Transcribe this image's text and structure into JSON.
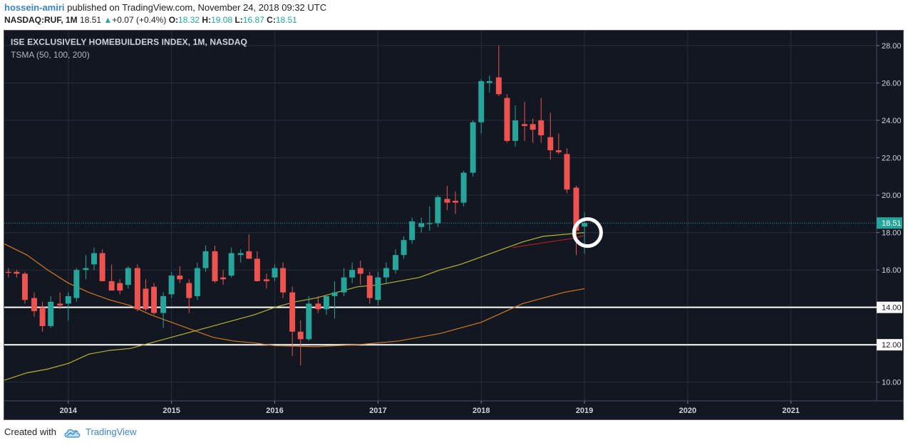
{
  "header": {
    "author": "hossein-amiri",
    "published_text": " published on TradingView.com, November 24, 2018 09:32 UTC",
    "symbol": "NASDAQ:RUF, 1M",
    "last": "18.51",
    "change_arrow": "▲",
    "change": "+0.07 (+0.4%)",
    "o_label": "O:",
    "o_value": "18.32",
    "h_label": "H:",
    "h_value": "19.08",
    "l_label": "L:",
    "l_value": "16.87",
    "c_label": "C:",
    "c_value": "18.51"
  },
  "chart_title": "ISE EXCLUSIVELY HOMEBUILDERS INDEX, 1M, NASDAQ",
  "indicator_label": "TSMA (50, 100, 200)",
  "footer": {
    "created_with": "Created with",
    "brand": "TradingView"
  },
  "colors": {
    "background": "#131722",
    "up": "#26a69a",
    "down": "#ef5350",
    "sma50": "#b5b530",
    "sma100": "#d07a20",
    "sma200": "#b01e1e",
    "last_price_line": "#26a69a",
    "horizontal_levels": "#ffffff",
    "annotation_circle": "#ffffff"
  },
  "chart_data": {
    "type": "candlestick",
    "title": "ISE EXCLUSIVELY HOMEBUILDERS INDEX, 1M, NASDAQ",
    "interval": "1M",
    "ylim": [
      9,
      28.8
    ],
    "y_ticks": [
      "10.00",
      "12.00",
      "14.00",
      "16.00",
      "18.00",
      "20.00",
      "22.00",
      "24.00",
      "26.00",
      "28.00"
    ],
    "x_ticks": [
      {
        "label": "2014",
        "t": 2014
      },
      {
        "label": "2015",
        "t": 2015
      },
      {
        "label": "2016",
        "t": 2016
      },
      {
        "label": "2017",
        "t": 2017
      },
      {
        "label": "2018",
        "t": 2018
      },
      {
        "label": "2019",
        "t": 2019
      },
      {
        "label": "2020",
        "t": 2020
      },
      {
        "label": "2021",
        "t": 2021
      }
    ],
    "x_range": [
      2013.38,
      2021.83
    ],
    "candles": [
      {
        "t": 2013.42,
        "o": 15.9,
        "h": 16.1,
        "l": 15.6,
        "c": 15.85
      },
      {
        "t": 2013.5,
        "o": 15.9,
        "h": 16.0,
        "l": 15.6,
        "c": 15.8
      },
      {
        "t": 2013.58,
        "o": 15.8,
        "h": 15.9,
        "l": 14.2,
        "c": 14.4
      },
      {
        "t": 2013.67,
        "o": 14.5,
        "h": 14.8,
        "l": 13.5,
        "c": 13.8
      },
      {
        "t": 2013.75,
        "o": 14.0,
        "h": 14.3,
        "l": 12.7,
        "c": 13.0
      },
      {
        "t": 2013.83,
        "o": 13.0,
        "h": 14.6,
        "l": 12.9,
        "c": 14.3
      },
      {
        "t": 2013.92,
        "o": 14.2,
        "h": 14.8,
        "l": 13.9,
        "c": 14.1
      },
      {
        "t": 2014.0,
        "o": 14.2,
        "h": 14.8,
        "l": 13.3,
        "c": 14.6
      },
      {
        "t": 2014.08,
        "o": 14.5,
        "h": 16.1,
        "l": 14.3,
        "c": 16.0
      },
      {
        "t": 2014.17,
        "o": 16.0,
        "h": 16.8,
        "l": 15.5,
        "c": 16.1
      },
      {
        "t": 2014.25,
        "o": 16.3,
        "h": 17.2,
        "l": 16.0,
        "c": 16.9
      },
      {
        "t": 2014.33,
        "o": 16.9,
        "h": 17.1,
        "l": 15.5,
        "c": 15.4
      },
      {
        "t": 2014.42,
        "o": 15.4,
        "h": 16.3,
        "l": 14.9,
        "c": 14.9
      },
      {
        "t": 2014.5,
        "o": 15.3,
        "h": 15.5,
        "l": 14.7,
        "c": 14.9
      },
      {
        "t": 2014.58,
        "o": 15.2,
        "h": 16.2,
        "l": 15.0,
        "c": 16.1
      },
      {
        "t": 2014.67,
        "o": 16.1,
        "h": 16.3,
        "l": 13.8,
        "c": 13.9
      },
      {
        "t": 2014.75,
        "o": 15.0,
        "h": 15.5,
        "l": 13.8,
        "c": 13.9
      },
      {
        "t": 2014.83,
        "o": 15.1,
        "h": 15.3,
        "l": 13.6,
        "c": 13.7
      },
      {
        "t": 2014.92,
        "o": 13.7,
        "h": 14.8,
        "l": 12.9,
        "c": 14.6
      },
      {
        "t": 2015.0,
        "o": 14.7,
        "h": 15.9,
        "l": 14.5,
        "c": 15.7
      },
      {
        "t": 2015.08,
        "o": 15.7,
        "h": 16.2,
        "l": 15.3,
        "c": 15.5
      },
      {
        "t": 2015.17,
        "o": 15.3,
        "h": 15.5,
        "l": 13.7,
        "c": 14.5
      },
      {
        "t": 2015.25,
        "o": 14.6,
        "h": 16.4,
        "l": 14.4,
        "c": 16.1
      },
      {
        "t": 2015.33,
        "o": 16.1,
        "h": 17.3,
        "l": 15.9,
        "c": 17.0
      },
      {
        "t": 2015.42,
        "o": 17.0,
        "h": 17.3,
        "l": 15.3,
        "c": 15.4
      },
      {
        "t": 2015.5,
        "o": 15.6,
        "h": 16.0,
        "l": 15.2,
        "c": 15.5
      },
      {
        "t": 2015.58,
        "o": 15.7,
        "h": 17.2,
        "l": 15.6,
        "c": 16.9
      },
      {
        "t": 2015.67,
        "o": 16.8,
        "h": 17.1,
        "l": 16.4,
        "c": 16.9
      },
      {
        "t": 2015.75,
        "o": 17.0,
        "h": 17.9,
        "l": 16.6,
        "c": 16.6
      },
      {
        "t": 2015.83,
        "o": 16.6,
        "h": 17.0,
        "l": 15.4,
        "c": 15.4
      },
      {
        "t": 2015.92,
        "o": 15.5,
        "h": 15.8,
        "l": 15.0,
        "c": 15.4
      },
      {
        "t": 2016.0,
        "o": 15.6,
        "h": 16.3,
        "l": 15.4,
        "c": 16.1
      },
      {
        "t": 2016.08,
        "o": 16.1,
        "h": 16.4,
        "l": 14.5,
        "c": 14.8
      },
      {
        "t": 2016.17,
        "o": 14.8,
        "h": 15.1,
        "l": 11.4,
        "c": 12.7
      },
      {
        "t": 2016.25,
        "o": 12.7,
        "h": 13.3,
        "l": 10.9,
        "c": 12.3
      },
      {
        "t": 2016.33,
        "o": 12.3,
        "h": 14.6,
        "l": 12.2,
        "c": 14.2
      },
      {
        "t": 2016.42,
        "o": 14.2,
        "h": 14.6,
        "l": 13.7,
        "c": 13.9
      },
      {
        "t": 2016.5,
        "o": 13.9,
        "h": 14.6,
        "l": 13.6,
        "c": 14.6
      },
      {
        "t": 2016.58,
        "o": 14.6,
        "h": 15.4,
        "l": 13.4,
        "c": 14.8
      },
      {
        "t": 2016.67,
        "o": 14.8,
        "h": 16.1,
        "l": 14.6,
        "c": 15.6
      },
      {
        "t": 2016.75,
        "o": 15.6,
        "h": 16.4,
        "l": 15.3,
        "c": 16.0
      },
      {
        "t": 2016.83,
        "o": 16.1,
        "h": 16.5,
        "l": 15.2,
        "c": 15.8
      },
      {
        "t": 2016.92,
        "o": 15.7,
        "h": 15.9,
        "l": 14.2,
        "c": 14.5
      },
      {
        "t": 2017.0,
        "o": 14.4,
        "h": 15.9,
        "l": 14.1,
        "c": 15.6
      },
      {
        "t": 2017.08,
        "o": 15.6,
        "h": 16.4,
        "l": 15.3,
        "c": 16.1
      },
      {
        "t": 2017.17,
        "o": 16.0,
        "h": 17.1,
        "l": 15.8,
        "c": 16.8
      },
      {
        "t": 2017.25,
        "o": 16.8,
        "h": 17.8,
        "l": 16.6,
        "c": 17.6
      },
      {
        "t": 2017.33,
        "o": 17.6,
        "h": 18.8,
        "l": 17.4,
        "c": 18.6
      },
      {
        "t": 2017.42,
        "o": 18.3,
        "h": 18.8,
        "l": 18.0,
        "c": 18.5
      },
      {
        "t": 2017.5,
        "o": 18.5,
        "h": 19.4,
        "l": 18.1,
        "c": 18.5
      },
      {
        "t": 2017.58,
        "o": 18.5,
        "h": 20.0,
        "l": 18.3,
        "c": 19.9
      },
      {
        "t": 2017.67,
        "o": 19.8,
        "h": 20.5,
        "l": 19.2,
        "c": 19.6
      },
      {
        "t": 2017.75,
        "o": 19.7,
        "h": 20.2,
        "l": 19.0,
        "c": 19.6
      },
      {
        "t": 2017.83,
        "o": 19.6,
        "h": 21.3,
        "l": 19.4,
        "c": 21.2
      },
      {
        "t": 2017.92,
        "o": 21.2,
        "h": 24.0,
        "l": 21.0,
        "c": 23.9
      },
      {
        "t": 2018.0,
        "o": 23.9,
        "h": 26.2,
        "l": 23.3,
        "c": 26.1
      },
      {
        "t": 2018.08,
        "o": 26.0,
        "h": 26.4,
        "l": 25.5,
        "c": 26.1
      },
      {
        "t": 2018.17,
        "o": 26.3,
        "h": 28.0,
        "l": 25.3,
        "c": 25.4
      },
      {
        "t": 2018.25,
        "o": 25.2,
        "h": 25.4,
        "l": 22.8,
        "c": 22.9
      },
      {
        "t": 2018.33,
        "o": 22.9,
        "h": 24.8,
        "l": 22.6,
        "c": 24.0
      },
      {
        "t": 2018.42,
        "o": 23.8,
        "h": 25.0,
        "l": 22.9,
        "c": 23.7
      },
      {
        "t": 2018.5,
        "o": 23.8,
        "h": 24.1,
        "l": 22.8,
        "c": 23.5
      },
      {
        "t": 2018.58,
        "o": 24.0,
        "h": 25.2,
        "l": 22.8,
        "c": 23.2
      },
      {
        "t": 2018.67,
        "o": 23.1,
        "h": 24.4,
        "l": 21.9,
        "c": 22.4
      },
      {
        "t": 2018.75,
        "o": 22.4,
        "h": 23.3,
        "l": 22.2,
        "c": 22.3
      },
      {
        "t": 2018.83,
        "o": 22.2,
        "h": 22.5,
        "l": 20.1,
        "c": 20.3
      },
      {
        "t": 2018.92,
        "o": 20.4,
        "h": 20.5,
        "l": 16.8,
        "c": 18.1
      },
      {
        "t": 2019.0,
        "o": 18.32,
        "h": 19.08,
        "l": 16.87,
        "c": 18.51
      }
    ],
    "sma50": [
      [
        2013.38,
        10.1
      ],
      [
        2013.6,
        10.5
      ],
      [
        2013.8,
        10.7
      ],
      [
        2014.0,
        11.0
      ],
      [
        2014.2,
        11.5
      ],
      [
        2014.4,
        11.7
      ],
      [
        2014.6,
        11.8
      ],
      [
        2014.8,
        12.1
      ],
      [
        2015.0,
        12.4
      ],
      [
        2015.2,
        12.7
      ],
      [
        2015.4,
        13.0
      ],
      [
        2015.6,
        13.3
      ],
      [
        2015.8,
        13.6
      ],
      [
        2016.0,
        14.0
      ],
      [
        2016.2,
        14.3
      ],
      [
        2016.4,
        14.5
      ],
      [
        2016.6,
        14.8
      ],
      [
        2016.8,
        15.1
      ],
      [
        2017.0,
        15.2
      ],
      [
        2017.2,
        15.4
      ],
      [
        2017.4,
        15.6
      ],
      [
        2017.6,
        16.0
      ],
      [
        2017.8,
        16.3
      ],
      [
        2018.0,
        16.7
      ],
      [
        2018.2,
        17.1
      ],
      [
        2018.4,
        17.5
      ],
      [
        2018.6,
        17.8
      ],
      [
        2018.8,
        17.9
      ],
      [
        2019.0,
        18.0
      ]
    ],
    "sma100": [
      [
        2013.38,
        17.4
      ],
      [
        2013.6,
        16.8
      ],
      [
        2013.8,
        16.0
      ],
      [
        2014.0,
        15.3
      ],
      [
        2014.2,
        14.8
      ],
      [
        2014.4,
        14.4
      ],
      [
        2014.6,
        14.1
      ],
      [
        2014.8,
        13.6
      ],
      [
        2015.0,
        13.2
      ],
      [
        2015.2,
        12.8
      ],
      [
        2015.4,
        12.4
      ],
      [
        2015.6,
        12.2
      ],
      [
        2015.8,
        12.1
      ],
      [
        2016.0,
        11.95
      ],
      [
        2016.4,
        11.9
      ],
      [
        2016.8,
        12.0
      ],
      [
        2017.2,
        12.2
      ],
      [
        2017.6,
        12.6
      ],
      [
        2018.0,
        13.2
      ],
      [
        2018.4,
        14.2
      ],
      [
        2018.8,
        14.8
      ],
      [
        2019.0,
        15.0
      ]
    ],
    "sma200": [
      [
        2018.3,
        17.2
      ],
      [
        2018.6,
        17.45
      ],
      [
        2018.9,
        17.7
      ],
      [
        2019.0,
        17.85
      ]
    ],
    "last_price": 18.51,
    "horizontal_levels": [
      14.0,
      12.0
    ],
    "annotation_circle": {
      "t": 2019.03,
      "y": 18.0
    }
  }
}
